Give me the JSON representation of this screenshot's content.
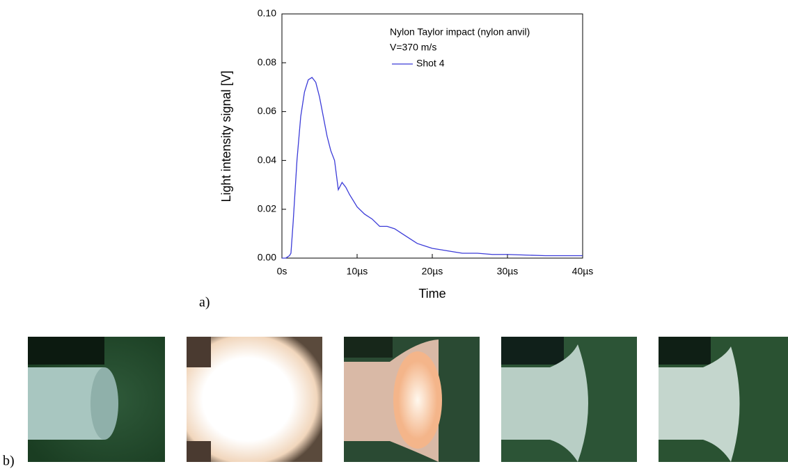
{
  "chart_data": {
    "type": "line",
    "annotations": [
      "Nylon Taylor impact (nylon anvil)",
      "V=370 m/s"
    ],
    "x_label": "Time",
    "y_label": "Light intensity signal [V]",
    "panel_labels": [
      "a)",
      "b)"
    ],
    "x": [
      0,
      0.5,
      1,
      1.2,
      1.5,
      2,
      2.5,
      3,
      3.5,
      4,
      4.5,
      5,
      5.5,
      6,
      6.5,
      7,
      7.5,
      8,
      8.5,
      9,
      10,
      11,
      12,
      13,
      14,
      15,
      16,
      17,
      18,
      19,
      20,
      22,
      24,
      26,
      28,
      30,
      35,
      40
    ],
    "series": [
      {
        "name": "Shot 4",
        "color": "#3b3bd8",
        "values": [
          0,
          0,
          0.001,
          0.002,
          0.015,
          0.04,
          0.058,
          0.068,
          0.073,
          0.074,
          0.072,
          0.066,
          0.058,
          0.05,
          0.044,
          0.04,
          0.028,
          0.031,
          0.029,
          0.026,
          0.021,
          0.018,
          0.016,
          0.013,
          0.013,
          0.012,
          0.01,
          0.008,
          0.006,
          0.005,
          0.004,
          0.003,
          0.002,
          0.002,
          0.0015,
          0.0015,
          0.001,
          0.001
        ]
      }
    ],
    "xlim": [
      0,
      40
    ],
    "xticks": [
      {
        "value": 0,
        "label": "0s"
      },
      {
        "value": 10,
        "label": "10µs"
      },
      {
        "value": 20,
        "label": "20µs"
      },
      {
        "value": 30,
        "label": "30µs"
      },
      {
        "value": 40,
        "label": "40µs"
      }
    ],
    "ylim": [
      0,
      0.1
    ],
    "yticks": [
      {
        "value": 0,
        "label": "0.00"
      },
      {
        "value": 0.02,
        "label": "0.02"
      },
      {
        "value": 0.04,
        "label": "0.04"
      },
      {
        "value": 0.06,
        "label": "0.06"
      },
      {
        "value": 0.08,
        "label": "0.08"
      },
      {
        "value": 0.1,
        "label": "0.10"
      }
    ],
    "grid": false
  }
}
